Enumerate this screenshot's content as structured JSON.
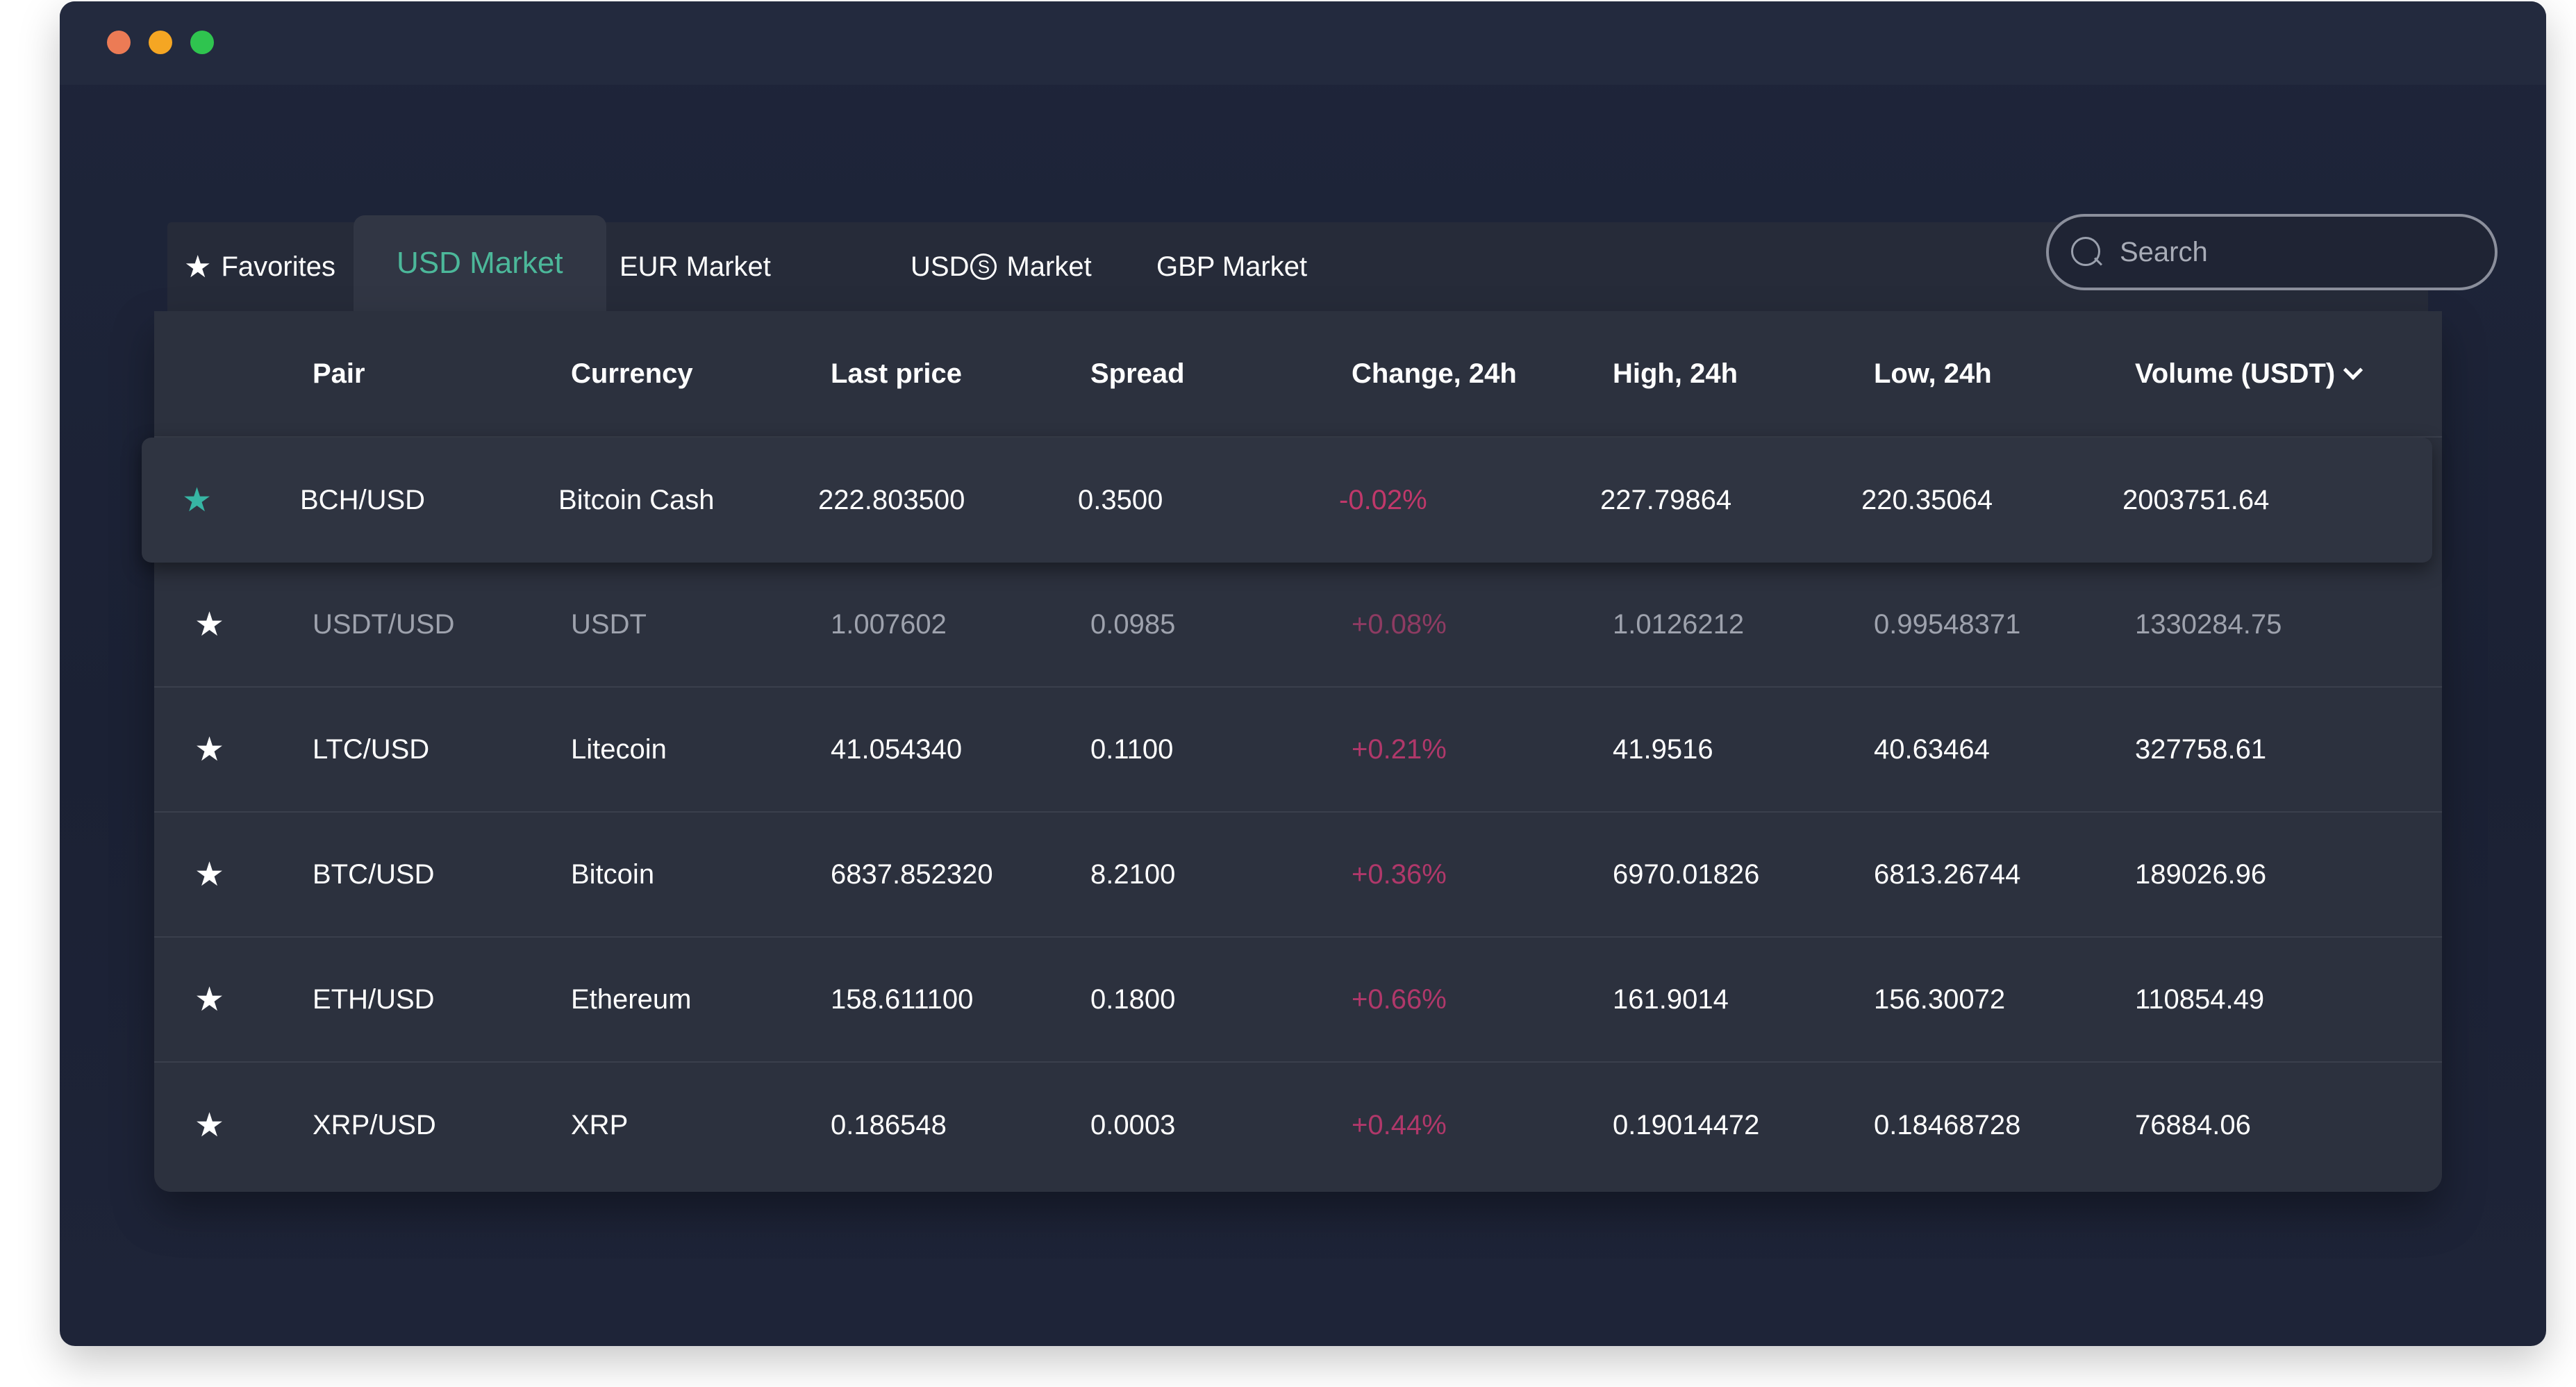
{
  "window": {
    "lights": [
      "#ec7b55",
      "#f5a623",
      "#2fc44f"
    ]
  },
  "tabs": {
    "favorites": "Favorites",
    "usd": "USD Market",
    "eur": "EUR Market",
    "usds_prefix": "USD",
    "usds_mark": "S",
    "usds_suffix": "Market",
    "gbp": "GBP Market",
    "active": "USD Market"
  },
  "search": {
    "placeholder": "Search",
    "value": ""
  },
  "table": {
    "headers": {
      "pair": "Pair",
      "currency": "Currency",
      "last_price": "Last price",
      "spread": "Spread",
      "change": "Change, 24h",
      "high": "High, 24h",
      "low": "Low, 24h",
      "volume": "Volume (USDT)"
    },
    "sort_icon": "chevron-down-icon",
    "rows": [
      {
        "favorite": true,
        "pair": "BCH/USD",
        "currency": "Bitcoin Cash",
        "last": "222.803500",
        "spread": "0.3500",
        "change": "-0.02%",
        "high": "227.79864",
        "low": "220.35064",
        "volume": "2003751.64"
      },
      {
        "favorite": false,
        "pair": "USDT/USD",
        "currency": "USDT",
        "last": "1.007602",
        "spread": "0.0985",
        "change": "+0.08%",
        "high": "1.0126212",
        "low": "0.99548371",
        "volume": "1330284.75"
      },
      {
        "favorite": false,
        "pair": "LTC/USD",
        "currency": "Litecoin",
        "last": "41.054340",
        "spread": "0.1100",
        "change": "+0.21%",
        "high": "41.9516",
        "low": "40.63464",
        "volume": "327758.61"
      },
      {
        "favorite": false,
        "pair": "BTC/USD",
        "currency": "Bitcoin",
        "last": "6837.852320",
        "spread": "8.2100",
        "change": "+0.36%",
        "high": "6970.01826",
        "low": "6813.26744",
        "volume": "189026.96"
      },
      {
        "favorite": false,
        "pair": "ETH/USD",
        "currency": "Ethereum",
        "last": "158.611100",
        "spread": "0.1800",
        "change": "+0.66%",
        "high": "161.9014",
        "low": "156.30072",
        "volume": "110854.49"
      },
      {
        "favorite": false,
        "pair": "XRP/USD",
        "currency": "XRP",
        "last": "0.186548",
        "spread": "0.0003",
        "change": "+0.44%",
        "high": "0.19014472",
        "low": "0.18468728",
        "volume": "76884.06"
      }
    ]
  },
  "colors": {
    "accent": "#4cb89a",
    "favorite_star": "#37b5a4",
    "change": "#c0386a",
    "background": "#1b2134",
    "table": "#2c313e"
  }
}
